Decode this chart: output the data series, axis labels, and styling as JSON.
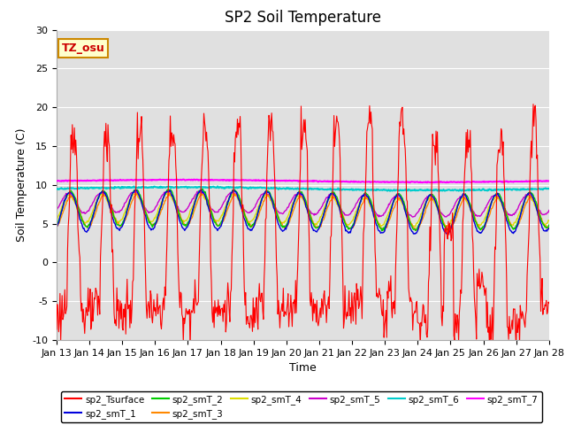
{
  "title": "SP2 Soil Temperature",
  "ylabel": "Soil Temperature (C)",
  "xlabel": "Time",
  "ylim": [
    -10,
    30
  ],
  "yticks": [
    -10,
    -5,
    0,
    5,
    10,
    15,
    20,
    25,
    30
  ],
  "xtick_labels": [
    "Jan 13",
    "Jan 14",
    "Jan 15",
    "Jan 16",
    "Jan 17",
    "Jan 18",
    "Jan 19",
    "Jan 20",
    "Jan 21",
    "Jan 22",
    "Jan 23",
    "Jan 24",
    "Jan 25",
    "Jan 26",
    "Jan 27",
    "Jan 28"
  ],
  "annotation_text": "TZ_osu",
  "annotation_color": "#cc0000",
  "annotation_bg": "#ffffcc",
  "annotation_border": "#cc8800",
  "colors": {
    "sp2_Tsurface": "#ff0000",
    "sp2_smT_1": "#0000dd",
    "sp2_smT_2": "#00cc00",
    "sp2_smT_3": "#ff8800",
    "sp2_smT_4": "#dddd00",
    "sp2_smT_5": "#cc00cc",
    "sp2_smT_6": "#00cccc",
    "sp2_smT_7": "#ff00ff"
  },
  "background_color": "#e0e0e0",
  "grid_color": "#ffffff",
  "title_fontsize": 12,
  "label_fontsize": 9,
  "tick_fontsize": 8
}
